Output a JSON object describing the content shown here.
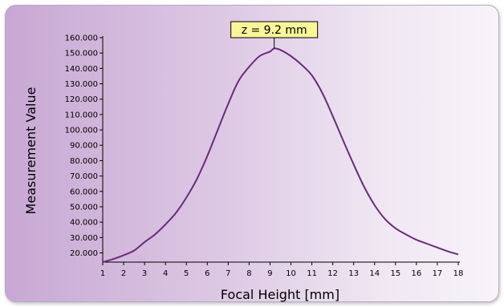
{
  "chart_data": {
    "type": "line",
    "title": "",
    "xlabel": "Focal Height [mm]",
    "ylabel": "Measurement Value",
    "xlim": [
      1,
      18
    ],
    "ylim": [
      14000,
      160000
    ],
    "x_ticks": [
      1,
      2,
      3,
      4,
      5,
      6,
      7,
      8,
      9,
      10,
      11,
      12,
      13,
      14,
      15,
      16,
      17,
      18
    ],
    "x_tick_labels": [
      "1",
      "2",
      "3",
      "4",
      "5",
      "6",
      "7",
      "8",
      "9",
      "10",
      "11",
      "12",
      "13",
      "14",
      "15",
      "16",
      "17",
      "18"
    ],
    "y_ticks": [
      20000,
      30000,
      40000,
      50000,
      60000,
      70000,
      80000,
      90000,
      100000,
      110000,
      120000,
      130000,
      140000,
      150000,
      160000
    ],
    "y_tick_labels": [
      "20.000",
      "30.000",
      "40.000",
      "50.000",
      "60.000",
      "70.000",
      "80.000",
      "90.000",
      "100.000",
      "110.000",
      "120.000",
      "130.000",
      "140.000",
      "150.000",
      "160.000"
    ],
    "grid": false,
    "line_color": "#6a2a7e",
    "annotation": {
      "text": "z = 9.2 mm",
      "x": 9.2,
      "y": 153000,
      "fill": "#fbf59a"
    },
    "series": [
      {
        "x": [
          1,
          1.5,
          2,
          2.5,
          3,
          3.5,
          4,
          4.5,
          5,
          5.5,
          6,
          6.5,
          7,
          7.5,
          8,
          8.5,
          9,
          9.2,
          9.5,
          10,
          10.5,
          11,
          11.5,
          12,
          12.5,
          13,
          13.5,
          14,
          14.5,
          15,
          15.5,
          16,
          16.5,
          17,
          17.5,
          18
        ],
        "values": [
          14000,
          16000,
          18500,
          21500,
          27000,
          32000,
          38500,
          46000,
          56000,
          68000,
          83000,
          100000,
          117000,
          132000,
          141000,
          148000,
          151000,
          153000,
          152000,
          148000,
          142500,
          135500,
          124000,
          109000,
          93000,
          77500,
          63000,
          51000,
          42000,
          36000,
          32000,
          28500,
          26000,
          23500,
          21000,
          19000
        ]
      }
    ]
  }
}
